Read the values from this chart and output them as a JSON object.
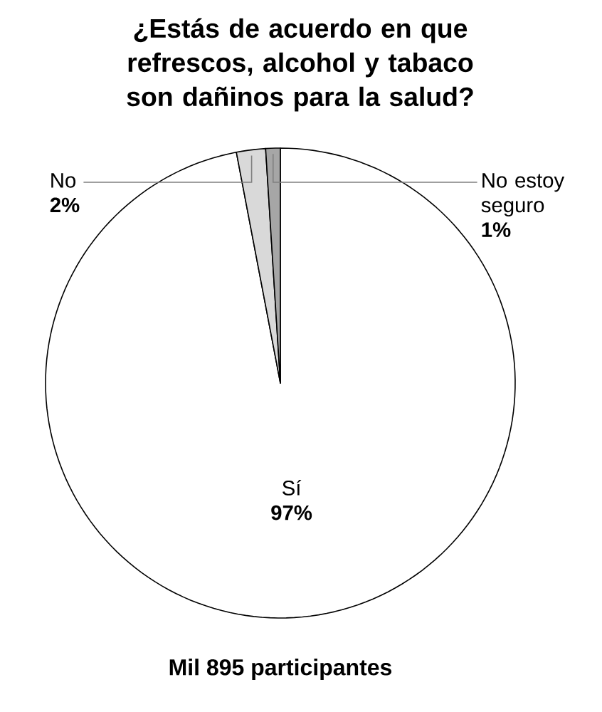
{
  "chart_data": {
    "type": "pie",
    "title": "¿Estás de acuerdo en que refrescos, alcohol y tabaco son dañinos para la salud?",
    "categories": [
      "Sí",
      "No",
      "No estoy seguro"
    ],
    "values": [
      97,
      2,
      1
    ],
    "value_labels": [
      "97%",
      "2%",
      "1%"
    ],
    "colors": [
      "#ffffff",
      "#d9d9d9",
      "#a6a6a6"
    ],
    "annotations": [
      "Mil 895 participantes"
    ]
  }
}
